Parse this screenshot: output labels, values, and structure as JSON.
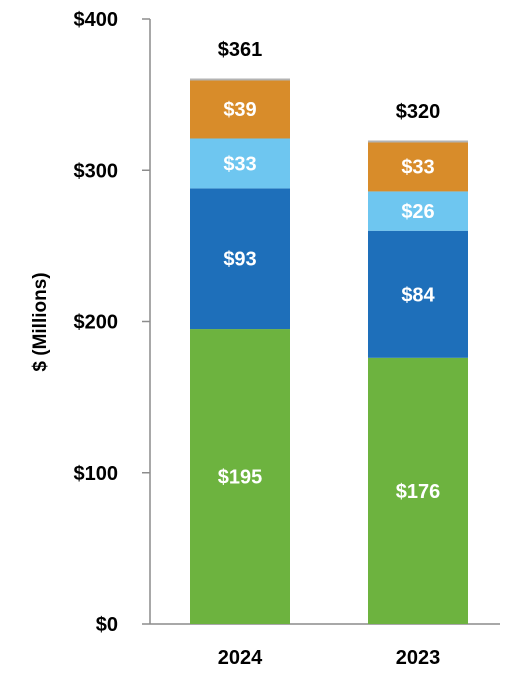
{
  "chart_data": {
    "type": "bar",
    "stacked": true,
    "title": "",
    "xlabel": "",
    "ylabel": "$ (Millions)",
    "ylim": [
      0,
      400
    ],
    "yticks": [
      0,
      100,
      200,
      300,
      400
    ],
    "ytick_labels": [
      "$0",
      "$100",
      "$200",
      "$300",
      "$400"
    ],
    "grid": false,
    "legend": "none",
    "categories": [
      "2024",
      "2023"
    ],
    "series": [
      {
        "values": [
          195,
          176
        ],
        "labels": [
          "$195",
          "$176"
        ],
        "color": "#6db33f"
      },
      {
        "values": [
          93,
          84
        ],
        "labels": [
          "$93",
          "$84"
        ],
        "color": "#1e6fba"
      },
      {
        "values": [
          33,
          26
        ],
        "labels": [
          "$33",
          "$26"
        ],
        "color": "#6ec6f0"
      },
      {
        "values": [
          39,
          33
        ],
        "labels": [
          "$39",
          "$33"
        ],
        "color": "#d88c2a"
      }
    ],
    "totals": [
      361,
      320
    ],
    "total_labels": [
      "$361",
      "$320"
    ]
  }
}
